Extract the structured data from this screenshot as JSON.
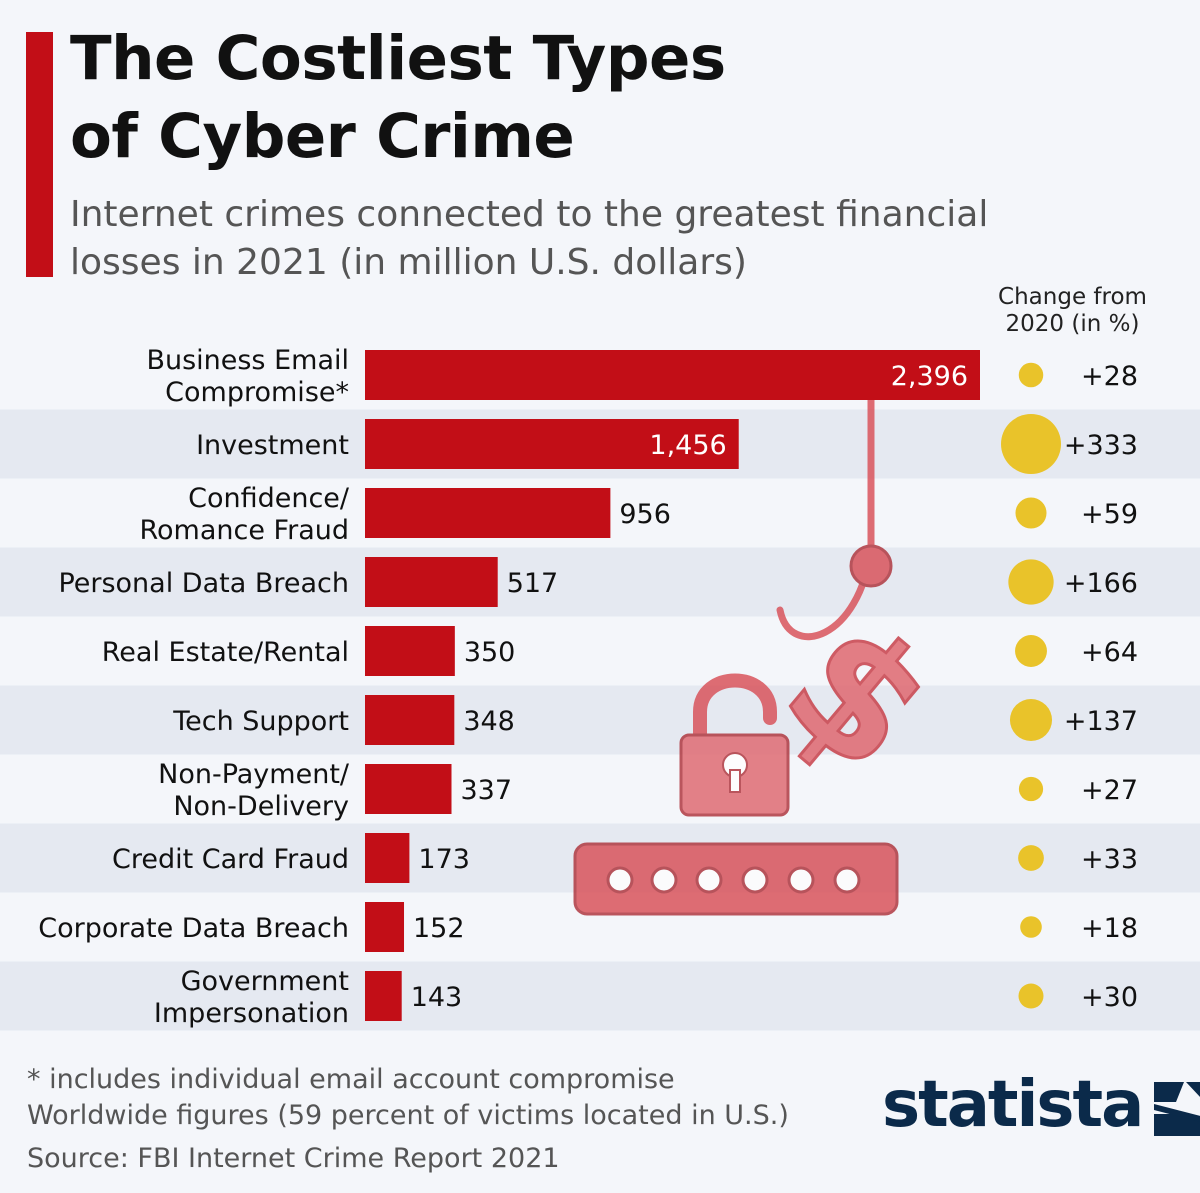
{
  "header": {
    "title_line1": "The Costliest Types",
    "title_line2": "of Cyber Crime",
    "subtitle_line1": "Internet crimes connected to the greatest financial",
    "subtitle_line2": "losses in 2021 (in million U.S. dollars)",
    "change_header_line1": "Change from",
    "change_header_line2": "2020 (in %)"
  },
  "colors": {
    "bar": "#c20e17",
    "dot": "#e9c32a",
    "stripe": "#e5e9f1",
    "accent": "#c20e17",
    "illustration": "#d9545c"
  },
  "chart_data": {
    "type": "bar",
    "orientation": "horizontal",
    "title": "The Costliest Types of Cyber Crime",
    "subtitle": "Internet crimes connected to the greatest financial losses in 2021 (in million U.S. dollars)",
    "categories": [
      [
        "Business Email",
        "Compromise*"
      ],
      [
        "Investment"
      ],
      [
        "Confidence/",
        "Romance Fraud"
      ],
      [
        "Personal Data Breach"
      ],
      [
        "Real Estate/Rental"
      ],
      [
        "Tech Support"
      ],
      [
        "Non-Payment/",
        "Non-Delivery"
      ],
      [
        "Credit Card Fraud"
      ],
      [
        "Corporate Data Breach"
      ],
      [
        "Government",
        "Impersonation"
      ]
    ],
    "values": [
      2396,
      1456,
      956,
      517,
      350,
      348,
      337,
      173,
      152,
      143
    ],
    "value_labels": [
      "2,396",
      "1,456",
      "956",
      "517",
      "350",
      "348",
      "337",
      "173",
      "152",
      "143"
    ],
    "change_from_2020_pct": [
      28,
      333,
      59,
      166,
      64,
      137,
      27,
      33,
      18,
      30
    ],
    "change_labels": [
      "+28",
      "+333",
      "+59",
      "+166",
      "+64",
      "+137",
      "+27",
      "+33",
      "+18",
      "+30"
    ],
    "xlim": [
      0,
      2396
    ],
    "grid": false,
    "legend": "none"
  },
  "footer": {
    "note": "* includes individual email account compromise",
    "note2": "Worldwide figures (59 percent of victims located in U.S.)",
    "source": "Source: FBI Internet Crime Report 2021",
    "logo_text": "statista",
    "logo_icon": "statista-logo-icon"
  },
  "illustration": {
    "icons": [
      "fish-hook-icon",
      "dollar-sign-icon",
      "open-padlock-icon",
      "password-field-icon"
    ]
  }
}
